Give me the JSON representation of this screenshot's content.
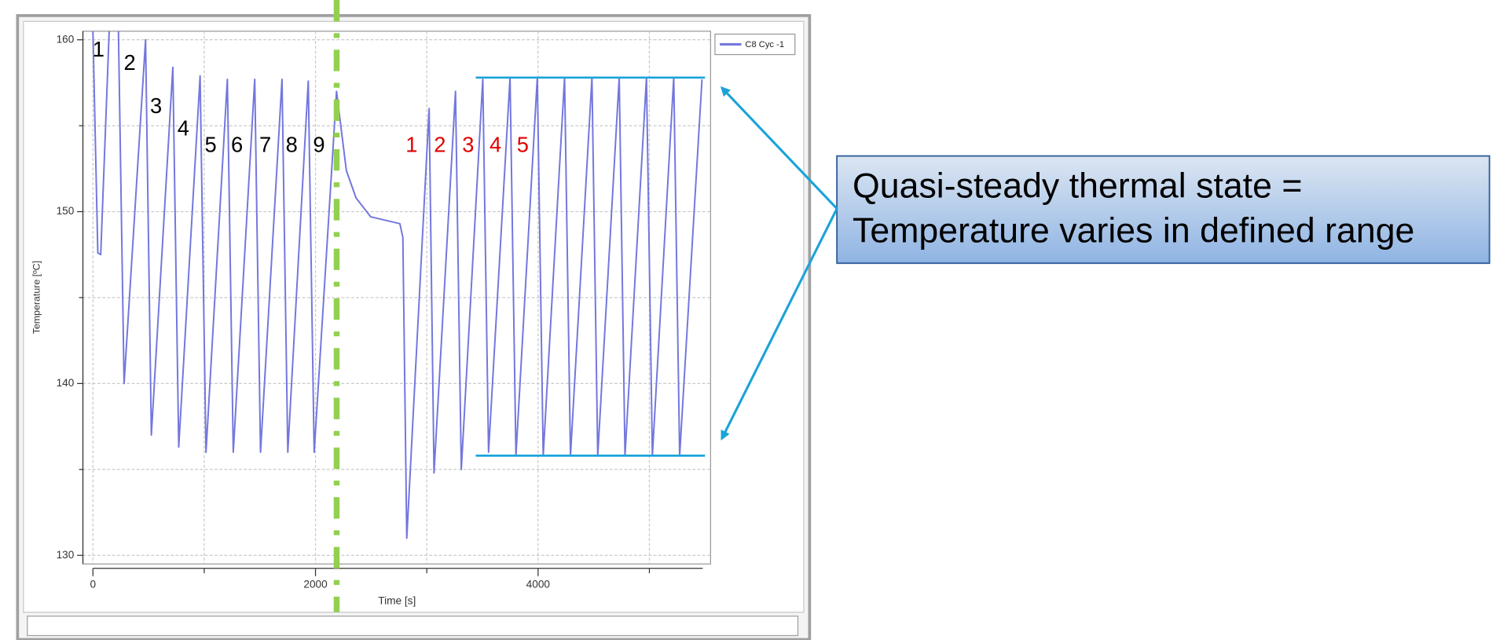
{
  "chart_data": {
    "type": "line",
    "xlabel": "Time [s]",
    "ylabel": "Temperature [ºC]",
    "x": [
      0,
      44,
      70,
      149,
      228,
      280,
      473,
      525,
      718,
      771,
      963,
      1016,
      1208,
      1261,
      1454,
      1506,
      1699,
      1751,
      1935,
      1988,
      2189,
      2277,
      2364,
      2496,
      2758,
      2785,
      2820,
      3021,
      3065,
      3258,
      3310,
      3503,
      3555,
      3748,
      3801,
      3993,
      4046,
      4238,
      4291,
      4484,
      4536,
      4729,
      4781,
      4974,
      5027,
      5219,
      5272,
      5473
    ],
    "series": [
      {
        "name": "C8 Cyc -1",
        "color": "#7377dd",
        "values": [
          160.5,
          147.6,
          147.5,
          161,
          161,
          140,
          160,
          137,
          158.4,
          136.3,
          157.9,
          136,
          157.7,
          136,
          157.7,
          136,
          157.7,
          136,
          157.6,
          136,
          157,
          152.4,
          150.8,
          149.7,
          149.3,
          148.5,
          131,
          156,
          134.8,
          157,
          135,
          157.7,
          136,
          157.8,
          135.8,
          157.8,
          135.8,
          157.8,
          135.8,
          157.8,
          135.8,
          157.8,
          135.8,
          157.8,
          135.8,
          157.8,
          135.8,
          157.7
        ]
      }
    ],
    "xlim": [
      -90,
      5550
    ],
    "ylim": [
      129.5,
      160.5
    ],
    "xticks": [
      0,
      2000,
      4000
    ],
    "yticks": [
      130,
      140,
      150,
      160
    ],
    "xminor": [
      1000,
      3000,
      5000
    ],
    "yminor": [
      135,
      145,
      155
    ],
    "grid": true,
    "legend": "upper right",
    "range_lines": {
      "upper": 157.8,
      "lower": 135.8,
      "x_start": 3440,
      "x_end": 5500,
      "color": "#1aa3d9"
    },
    "phase_marker": {
      "x": 2190,
      "color": "#92d050"
    },
    "cycle_labels_first": [
      "1",
      "2",
      "3",
      "4",
      "5",
      "6",
      "7",
      "8",
      "9"
    ],
    "cycle_labels_second": [
      "1",
      "2",
      "3",
      "4",
      "5"
    ],
    "callout": [
      "Quasi-steady thermal state =",
      "Temperature varies in defined range"
    ]
  }
}
